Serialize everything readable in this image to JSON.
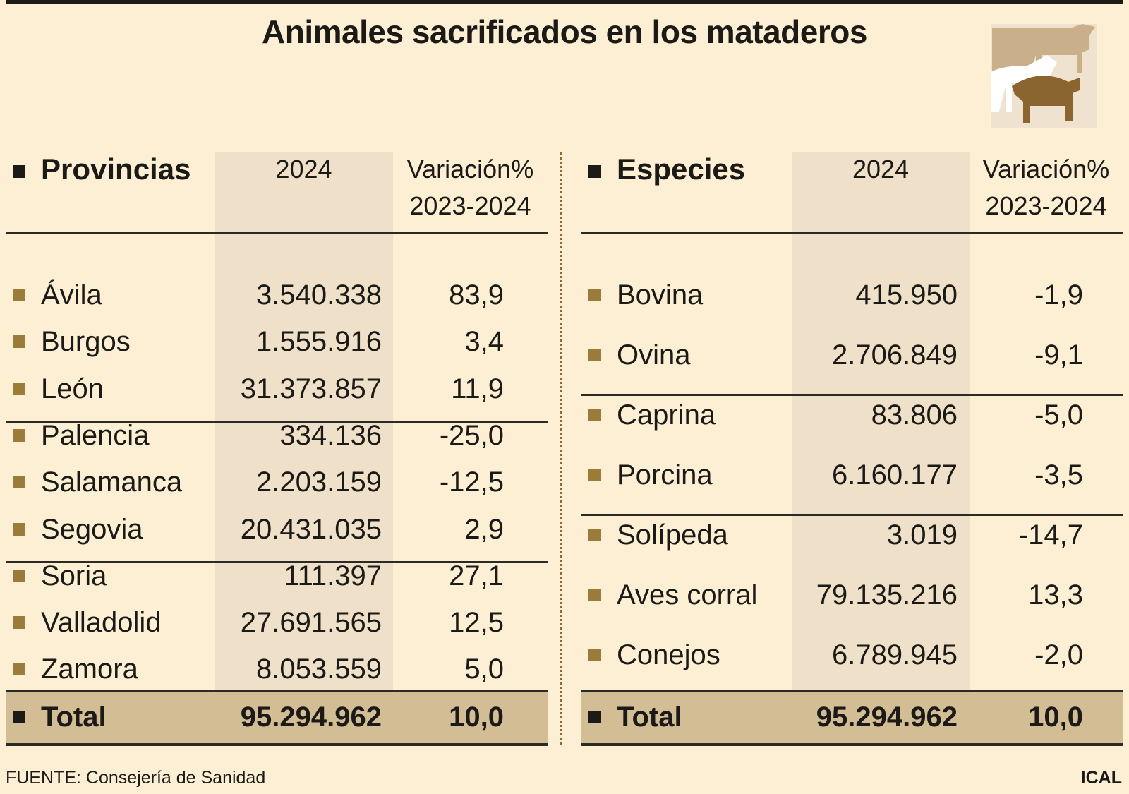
{
  "title": "Animales sacrificados en los mataderos",
  "left": {
    "header": {
      "name": "Provincias",
      "year": "2024",
      "variation": [
        "Variación%",
        "2023-2024"
      ]
    },
    "rows": [
      [
        "Ávila",
        "3.540.338",
        "83,9"
      ],
      [
        "Burgos",
        "1.555.916",
        "3,4"
      ],
      [
        "León",
        "31.373.857",
        "11,9"
      ],
      [
        "Palencia",
        "334.136",
        "-25,0"
      ],
      [
        "Salamanca",
        "2.203.159",
        "-12,5"
      ],
      [
        "Segovia",
        "20.431.035",
        "2,9"
      ],
      [
        "Soria",
        "111.397",
        "27,1"
      ],
      [
        "Valladolid",
        "27.691.565",
        "12,5"
      ],
      [
        "Zamora",
        "8.053.559",
        "5,0"
      ]
    ],
    "total": [
      "Total",
      "95.294.962",
      "10,0"
    ]
  },
  "right": {
    "header": {
      "name": "Especies",
      "year": "2024",
      "variation": [
        "Variación%",
        "2023-2024"
      ]
    },
    "rows": [
      [
        "Bovina",
        "415.950",
        "-1,9"
      ],
      [
        "Ovina",
        "2.706.849",
        "-9,1"
      ],
      [
        "Caprina",
        "83.806",
        "-5,0"
      ],
      [
        "Porcina",
        "6.160.177",
        "-3,5"
      ],
      [
        "Solípeda",
        "3.019",
        "-14,7"
      ],
      [
        "Aves corral",
        "79.135.216",
        "13,3"
      ],
      [
        "Conejos",
        "6.789.945",
        "-2,0"
      ]
    ],
    "total": [
      "Total",
      "95.294.962",
      "10,0"
    ]
  },
  "source": "FUENTE: Consejería de Sanidad",
  "credit": "ICAL"
}
